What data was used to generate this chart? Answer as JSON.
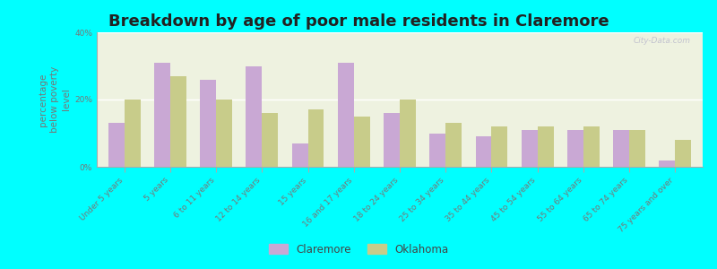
{
  "title": "Breakdown by age of poor male residents in Claremore",
  "ylabel": "percentage\nbelow poverty\nlevel",
  "categories": [
    "Under 5 years",
    "5 years",
    "6 to 11 years",
    "12 to 14 years",
    "15 years",
    "16 and 17 years",
    "18 to 24 years",
    "25 to 34 years",
    "35 to 44 years",
    "45 to 54 years",
    "55 to 64 years",
    "65 to 74 years",
    "75 years and over"
  ],
  "claremore_values": [
    13,
    31,
    26,
    30,
    7,
    31,
    16,
    10,
    9,
    11,
    11,
    11,
    2
  ],
  "oklahoma_values": [
    20,
    27,
    20,
    16,
    17,
    15,
    20,
    13,
    12,
    12,
    12,
    11,
    8
  ],
  "claremore_color": "#c9a8d4",
  "oklahoma_color": "#c8cc8a",
  "background_color": "#00ffff",
  "plot_bg_color": "#eef2e0",
  "ylim": [
    0,
    40
  ],
  "yticks": [
    0,
    20,
    40
  ],
  "ytick_labels": [
    "0%",
    "20%",
    "40%"
  ],
  "bar_width": 0.35,
  "legend_labels": [
    "Claremore",
    "Oklahoma"
  ],
  "title_fontsize": 13,
  "axis_label_fontsize": 7.5,
  "tick_fontsize": 6.5,
  "watermark": "City-Data.com"
}
